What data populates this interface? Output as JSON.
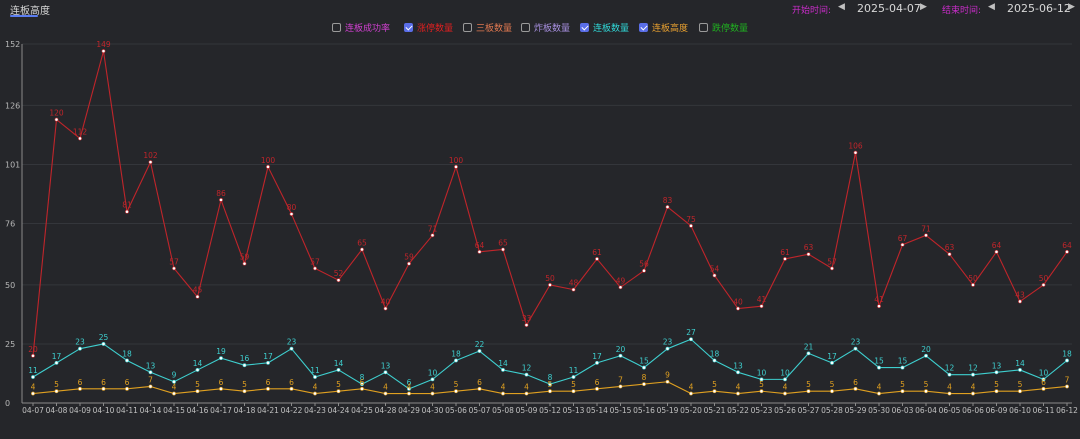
{
  "header": {
    "tab_label": "连板高度",
    "start_label": "开始时间:",
    "start_date": "2025-04-07",
    "end_label": "结束时间:",
    "end_date": "2025-06-12",
    "prev_arrow": "◀",
    "next_arrow": "▶"
  },
  "legend": [
    {
      "label": "连板成功率",
      "color": "#d040d0",
      "checked": false
    },
    {
      "label": "涨停数量",
      "color": "#e02020",
      "checked": true
    },
    {
      "label": "三板数量",
      "color": "#e07850",
      "checked": false
    },
    {
      "label": "炸板数量",
      "color": "#a890e0",
      "checked": false
    },
    {
      "label": "连板数量",
      "color": "#30d8d8",
      "checked": true
    },
    {
      "label": "连板高度",
      "color": "#e8a030",
      "checked": true
    },
    {
      "label": "跌停数量",
      "color": "#20b020",
      "checked": false
    }
  ],
  "chart_data": {
    "type": "line",
    "categories": [
      "04-07",
      "04-08",
      "04-09",
      "04-10",
      "04-11",
      "04-14",
      "04-15",
      "04-16",
      "04-17",
      "04-18",
      "04-21",
      "04-22",
      "04-23",
      "04-24",
      "04-25",
      "04-28",
      "04-29",
      "04-30",
      "05-06",
      "05-07",
      "05-08",
      "05-09",
      "05-12",
      "05-13",
      "05-14",
      "05-15",
      "05-16",
      "05-19",
      "05-20",
      "05-21",
      "05-22",
      "05-23",
      "05-26",
      "05-27",
      "05-28",
      "05-29",
      "05-30",
      "06-03",
      "06-04",
      "06-05",
      "06-06",
      "06-09",
      "06-10",
      "06-11",
      "06-12"
    ],
    "y_ticks": [
      "0",
      "25",
      "50",
      "76",
      "101",
      "126",
      "152"
    ],
    "ylim": [
      0,
      152
    ],
    "series": [
      {
        "name": "涨停数量",
        "color": "#c0252a",
        "labels": [
          "20",
          "120",
          "112",
          "149",
          "81",
          "102",
          "57",
          "45",
          "86",
          "59",
          "100",
          "80",
          "57",
          "52",
          "65",
          "40",
          "59",
          "71",
          "100",
          "64",
          "65",
          "33",
          "50",
          "48",
          "61",
          "49",
          "56",
          "83",
          "75",
          "54",
          "40",
          "41",
          "61",
          "63",
          "57",
          "106",
          "41",
          "67",
          "71",
          "63",
          "50",
          "64",
          "43",
          "50",
          "64"
        ],
        "values": [
          20,
          120,
          112,
          149,
          81,
          102,
          57,
          45,
          86,
          59,
          100,
          80,
          57,
          52,
          65,
          40,
          59,
          71,
          100,
          64,
          65,
          33,
          50,
          48,
          61,
          49,
          56,
          83,
          75,
          54,
          40,
          41,
          61,
          63,
          57,
          106,
          41,
          67,
          71,
          63,
          50,
          64,
          43,
          50,
          64
        ]
      },
      {
        "name": "连板数量",
        "color": "#3ecfcf",
        "labels": [
          "11",
          "17",
          "23",
          "25",
          "18",
          "13",
          "9",
          "14",
          "19",
          "16",
          "17",
          "23",
          "11",
          "14",
          "8",
          "13",
          "6",
          "10",
          "18",
          "22",
          "14",
          "12",
          "8",
          "11",
          "17",
          "20",
          "15",
          "23",
          "27",
          "18",
          "13",
          "10",
          "10",
          "21",
          "17",
          "23",
          "15",
          "15",
          "20",
          "12",
          "12",
          "13",
          "14",
          "10",
          "18"
        ],
        "values": [
          11,
          17,
          23,
          25,
          18,
          13,
          9,
          14,
          19,
          16,
          17,
          23,
          11,
          14,
          8,
          13,
          6,
          10,
          18,
          22,
          14,
          12,
          8,
          11,
          17,
          20,
          15,
          23,
          27,
          18,
          13,
          10,
          10,
          21,
          17,
          23,
          15,
          15,
          20,
          12,
          12,
          13,
          14,
          10,
          18
        ]
      },
      {
        "name": "连板高度",
        "color": "#e0a020",
        "labels": [
          "4",
          "5",
          "6",
          "6",
          "6",
          "7",
          "4",
          "5",
          "6",
          "5",
          "6",
          "6",
          "4",
          "5",
          "6",
          "4",
          "4",
          "4",
          "5",
          "6",
          "4",
          "4",
          "5",
          "5",
          "6",
          "7",
          "8",
          "9",
          "4",
          "5",
          "4",
          "5",
          "4",
          "5",
          "5",
          "6",
          "4",
          "5",
          "5",
          "4",
          "4",
          "5",
          "5",
          "6",
          "7"
        ],
        "values": [
          4,
          5,
          6,
          6,
          6,
          7,
          4,
          5,
          6,
          5,
          6,
          6,
          4,
          5,
          6,
          4,
          4,
          4,
          5,
          6,
          4,
          4,
          5,
          5,
          6,
          7,
          8,
          9,
          4,
          5,
          4,
          5,
          4,
          5,
          5,
          6,
          4,
          5,
          5,
          4,
          4,
          5,
          5,
          6,
          7
        ]
      }
    ]
  }
}
